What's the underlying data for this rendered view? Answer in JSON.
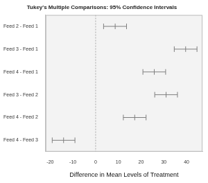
{
  "chart_data": {
    "type": "interval",
    "title": "Tukey's Multiple Comparisons: 95% Confidence Intervals",
    "x_label": "Difference in Mean Levels of Treatment",
    "categories": [
      "Feed 2 - Feed 1",
      "Feed 3 - Feed 1",
      "Feed 4 - Feed 1",
      "Feed 3 - Feed 2",
      "Feed 4 - Feed 2",
      "Feed 4 - Feed 3"
    ],
    "values": [
      8.6,
      39.6,
      25.8,
      31.0,
      17.2,
      -14.1
    ],
    "lower": [
      3.5,
      34.6,
      20.8,
      26.0,
      12.2,
      -19.1
    ],
    "upper": [
      13.6,
      44.6,
      30.8,
      36.0,
      22.2,
      -9.1
    ],
    "xlim": [
      -22,
      47
    ],
    "xticks": [
      -20,
      -10,
      0,
      10,
      20,
      30,
      40
    ],
    "reference_line": 0,
    "color": "#7f7f7f",
    "grid": false
  }
}
